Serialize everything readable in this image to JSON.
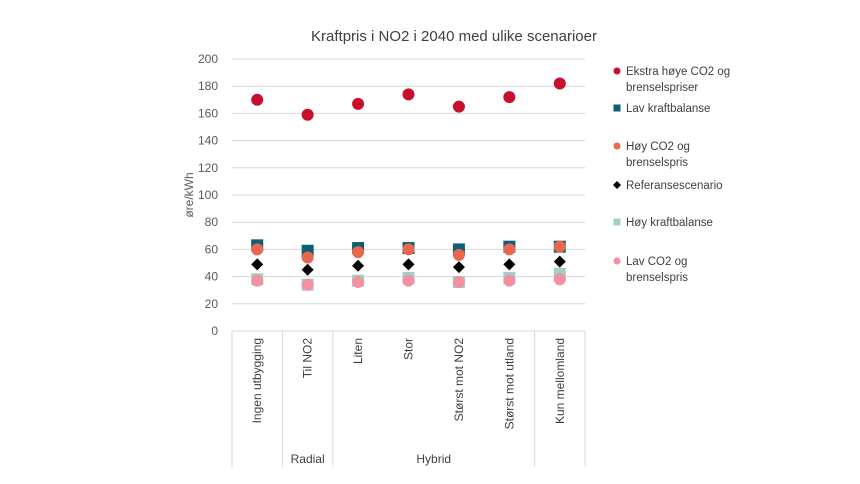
{
  "chart_data": {
    "type": "scatter",
    "title": "Kraftpris i NO2 i 2040 med ulike scenarioer",
    "ylabel": "øre/kWh",
    "xlabel": "",
    "ylim": [
      0,
      200
    ],
    "yticks": [
      0,
      20,
      40,
      60,
      80,
      100,
      120,
      140,
      160,
      180,
      200
    ],
    "grid": true,
    "legend_position": "right",
    "categories": [
      "Ingen utbygging",
      "Til NO2",
      "Liten",
      "Stor",
      "Størst mot NO2",
      "Størst mot utland",
      "Kun mellomland"
    ],
    "groups": [
      {
        "label": "",
        "span": 1
      },
      {
        "label": "Radial",
        "span": 1
      },
      {
        "label": "Hybrid",
        "span": 4
      },
      {
        "label": "",
        "span": 1
      }
    ],
    "series": [
      {
        "name": "Ekstra høye CO2 og brenselspriser",
        "legend_lines": [
          "Ekstra høye CO2 og",
          "brenselspriser"
        ],
        "marker": "circle",
        "color": "#C8102E",
        "values": [
          170,
          159,
          167,
          174,
          165,
          172,
          182
        ]
      },
      {
        "name": "Lav kraftbalanse",
        "legend_lines": [
          "Lav kraftbalanse"
        ],
        "marker": "square",
        "color": "#0E5F76",
        "values": [
          63,
          59,
          61,
          61,
          60,
          62,
          62
        ]
      },
      {
        "name": "Høy CO2 og brenselspris",
        "legend_lines": [
          "Høy CO2 og",
          "brenselspris"
        ],
        "marker": "circle",
        "color": "#E8684F",
        "values": [
          60,
          54,
          58,
          60,
          56,
          60,
          62
        ]
      },
      {
        "name": "Referansescenario",
        "legend_lines": [
          "Referansescenario"
        ],
        "marker": "diamond",
        "color": "#000000",
        "values": [
          49,
          45,
          48,
          49,
          47,
          49,
          51
        ]
      },
      {
        "name": "Høy kraftbalanse",
        "legend_lines": [
          "Høy kraftbalanse"
        ],
        "marker": "square",
        "color": "#9FD0C8",
        "values": [
          38,
          34,
          37,
          39,
          36,
          39,
          42
        ]
      },
      {
        "name": "Lav CO2 og brenselspris",
        "legend_lines": [
          "Lav CO2 og",
          "brenselspris"
        ],
        "marker": "circle",
        "color": "#F391A2",
        "values": [
          37,
          34,
          36,
          37,
          36,
          37,
          38
        ]
      }
    ]
  }
}
